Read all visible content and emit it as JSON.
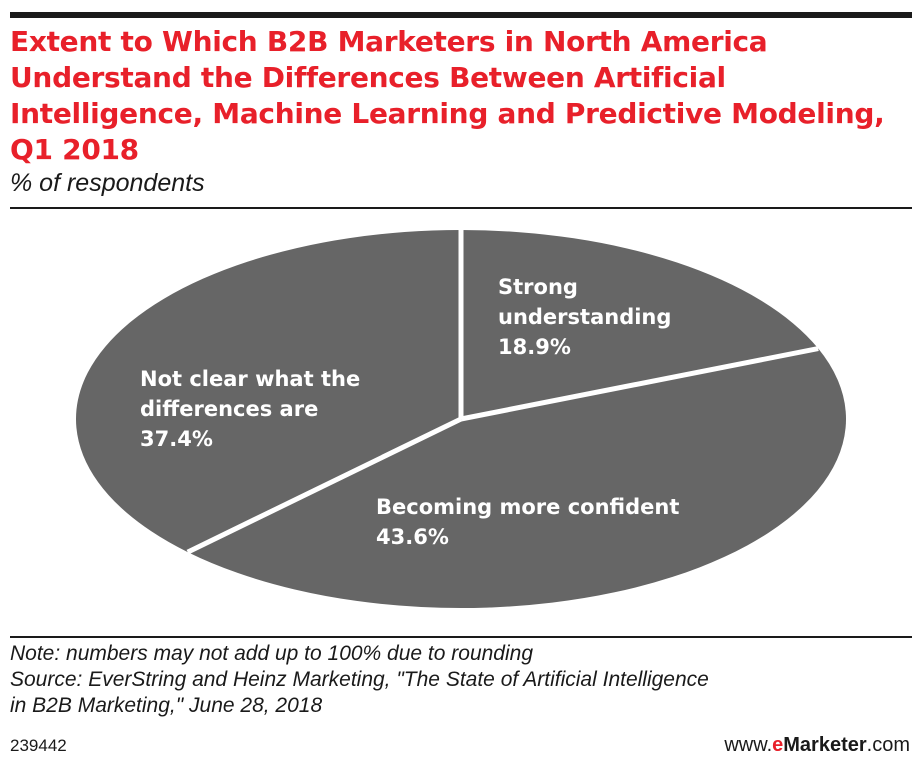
{
  "header": {
    "title": "Extent to Which B2B Marketers in North America Understand the Differences Between Artificial Intelligence, Machine Learning and Predictive Modeling, Q1 2018",
    "subtitle": "% of respondents"
  },
  "chart_data": {
    "type": "pie",
    "title": "Extent to Which B2B Marketers in North America Understand the Differences Between Artificial Intelligence, Machine Learning and Predictive Modeling, Q1 2018",
    "subtitle": "% of respondents",
    "slices": [
      {
        "label_lines": [
          "Strong",
          "understanding"
        ],
        "value": 18.9,
        "value_label": "18.9%"
      },
      {
        "label_lines": [
          "Becoming more confident"
        ],
        "value": 43.6,
        "value_label": "43.6%"
      },
      {
        "label_lines": [
          "Not clear what the",
          "differences are"
        ],
        "value": 37.4,
        "value_label": "37.4%"
      }
    ],
    "slice_color": "#666666",
    "separator_color": "#ffffff"
  },
  "footer": {
    "note": "Note: numbers may not add up to 100% due to rounding",
    "source_line1": "Source: EverString and Heinz Marketing, \"The State of Artificial Intelligence",
    "source_line2": "in B2B Marketing,\" June 28, 2018",
    "chart_id": "239442",
    "brand_prefix": "www.",
    "brand_e": "e",
    "brand_name": "Marketer",
    "brand_suffix": ".com"
  },
  "colors": {
    "title": "#e8202a",
    "text": "#1a1a1a"
  }
}
